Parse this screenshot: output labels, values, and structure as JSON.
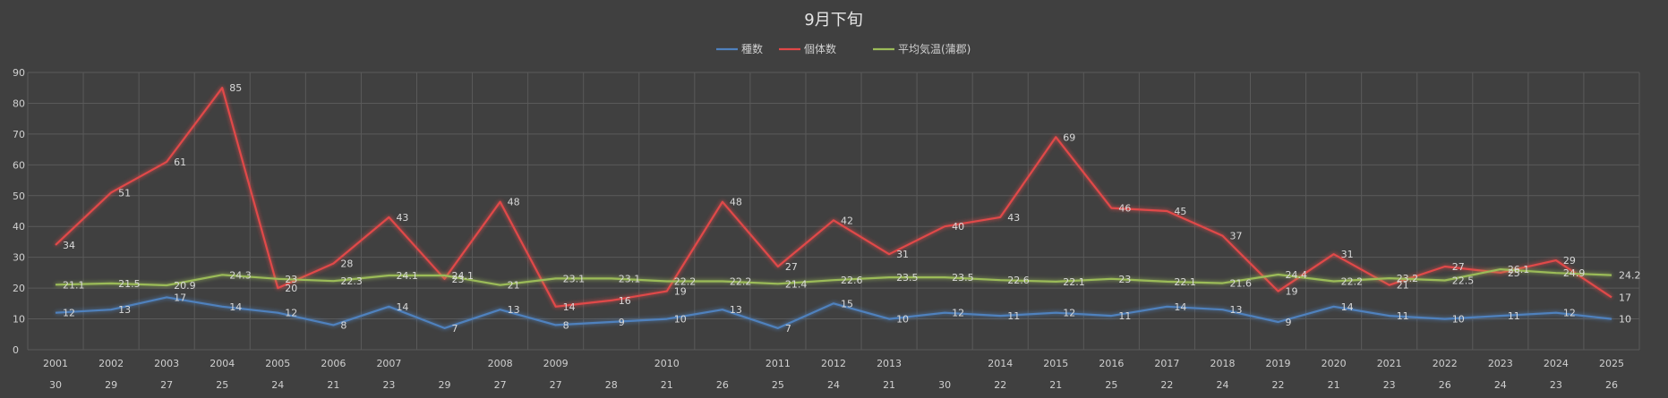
{
  "chart_data": {
    "type": "line",
    "title": "9月下旬",
    "x_years": [
      "2001",
      "2002",
      "2003",
      "2004",
      "2005",
      "2006",
      "2007",
      "",
      "2008",
      "2009",
      "",
      "2010",
      "",
      "2011",
      "2012",
      "2013",
      "",
      "2014",
      "2015",
      "2016",
      "2017",
      "2018",
      "2019",
      "2020",
      "2021",
      "2022",
      "2023",
      "2024",
      "2025"
    ],
    "x_days": [
      "30",
      "29",
      "27",
      "25",
      "24",
      "21",
      "23",
      "29",
      "27",
      "27",
      "28",
      "21",
      "26",
      "25",
      "24",
      "21",
      "30",
      "22",
      "21",
      "25",
      "22",
      "24",
      "22",
      "21",
      "23",
      "26",
      "24",
      "23",
      "26"
    ],
    "ylim": [
      0,
      90
    ],
    "yticks": [
      0,
      10,
      20,
      30,
      40,
      50,
      60,
      70,
      80,
      90
    ],
    "legend_position": "top",
    "series": [
      {
        "name": "種数",
        "color": "#4f81bd",
        "values": [
          12,
          13,
          17,
          14,
          12,
          8,
          14,
          7,
          13,
          8,
          9,
          10,
          13,
          7,
          15,
          10,
          12,
          11,
          12,
          11,
          14,
          13,
          9,
          14,
          11,
          10,
          11,
          12,
          10
        ]
      },
      {
        "name": "個体数",
        "color": "#e04848",
        "values": [
          34,
          51,
          61,
          85,
          20,
          28,
          43,
          23,
          48,
          14,
          16,
          19,
          48,
          27,
          42,
          31,
          40,
          43,
          69,
          46,
          45,
          37,
          19,
          31,
          21,
          27,
          25,
          29,
          17
        ]
      },
      {
        "name": "平均気温(蒲郡)",
        "color": "#9bbb59",
        "values": [
          21.1,
          21.5,
          20.9,
          24.3,
          23,
          22.3,
          24.1,
          24.1,
          21,
          23.1,
          23.1,
          22.2,
          22.2,
          21.4,
          22.6,
          23.5,
          23.5,
          22.6,
          22.1,
          23,
          22.1,
          21.6,
          24.4,
          22.2,
          23.2,
          22.5,
          26.1,
          24.9,
          24.2
        ]
      }
    ]
  }
}
